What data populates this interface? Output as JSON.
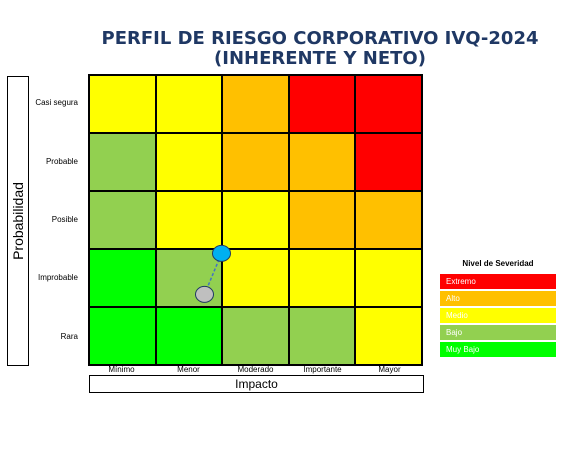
{
  "title_line1": "PERFIL DE RIESGO CORPORATIVO IVQ-2024",
  "title_line2": "(INHERENTE Y NETO)",
  "colors": {
    "Extremo": "#ff0000",
    "Alto": "#ffc000",
    "Medio": "#ffff00",
    "Bajo": "#92d050",
    "Muy Bajo": "#00ff00",
    "inherent_marker": "#00b0f0",
    "net_marker": "#bfbfbf",
    "title": "#1f3864"
  },
  "chart_data": {
    "type": "heatmap",
    "xlabel": "Impacto",
    "ylabel": "Probabilidad",
    "x_categories": [
      "Mínimo",
      "Menor",
      "Moderado",
      "Importante",
      "Mayor"
    ],
    "y_categories": [
      "Casi segura",
      "Probable",
      "Posible",
      "Improbable",
      "Rara"
    ],
    "matrix": [
      [
        "Medio",
        "Medio",
        "Alto",
        "Extremo",
        "Extremo"
      ],
      [
        "Bajo",
        "Medio",
        "Alto",
        "Alto",
        "Extremo"
      ],
      [
        "Bajo",
        "Medio",
        "Medio",
        "Alto",
        "Alto"
      ],
      [
        "Muy Bajo",
        "Bajo",
        "Medio",
        "Medio",
        "Medio"
      ],
      [
        "Muy Bajo",
        "Muy Bajo",
        "Bajo",
        "Bajo",
        "Medio"
      ]
    ],
    "points": [
      {
        "x": "Moderado",
        "y": "Improbable",
        "color": "#00b0f0"
      },
      {
        "x": "Menor",
        "y": "Improbable",
        "color": "#bfbfbf"
      }
    ],
    "legend_title": "Nivel de Severidad",
    "legend": [
      "Extremo",
      "Alto",
      "Medio",
      "Bajo",
      "Muy Bajo"
    ]
  }
}
